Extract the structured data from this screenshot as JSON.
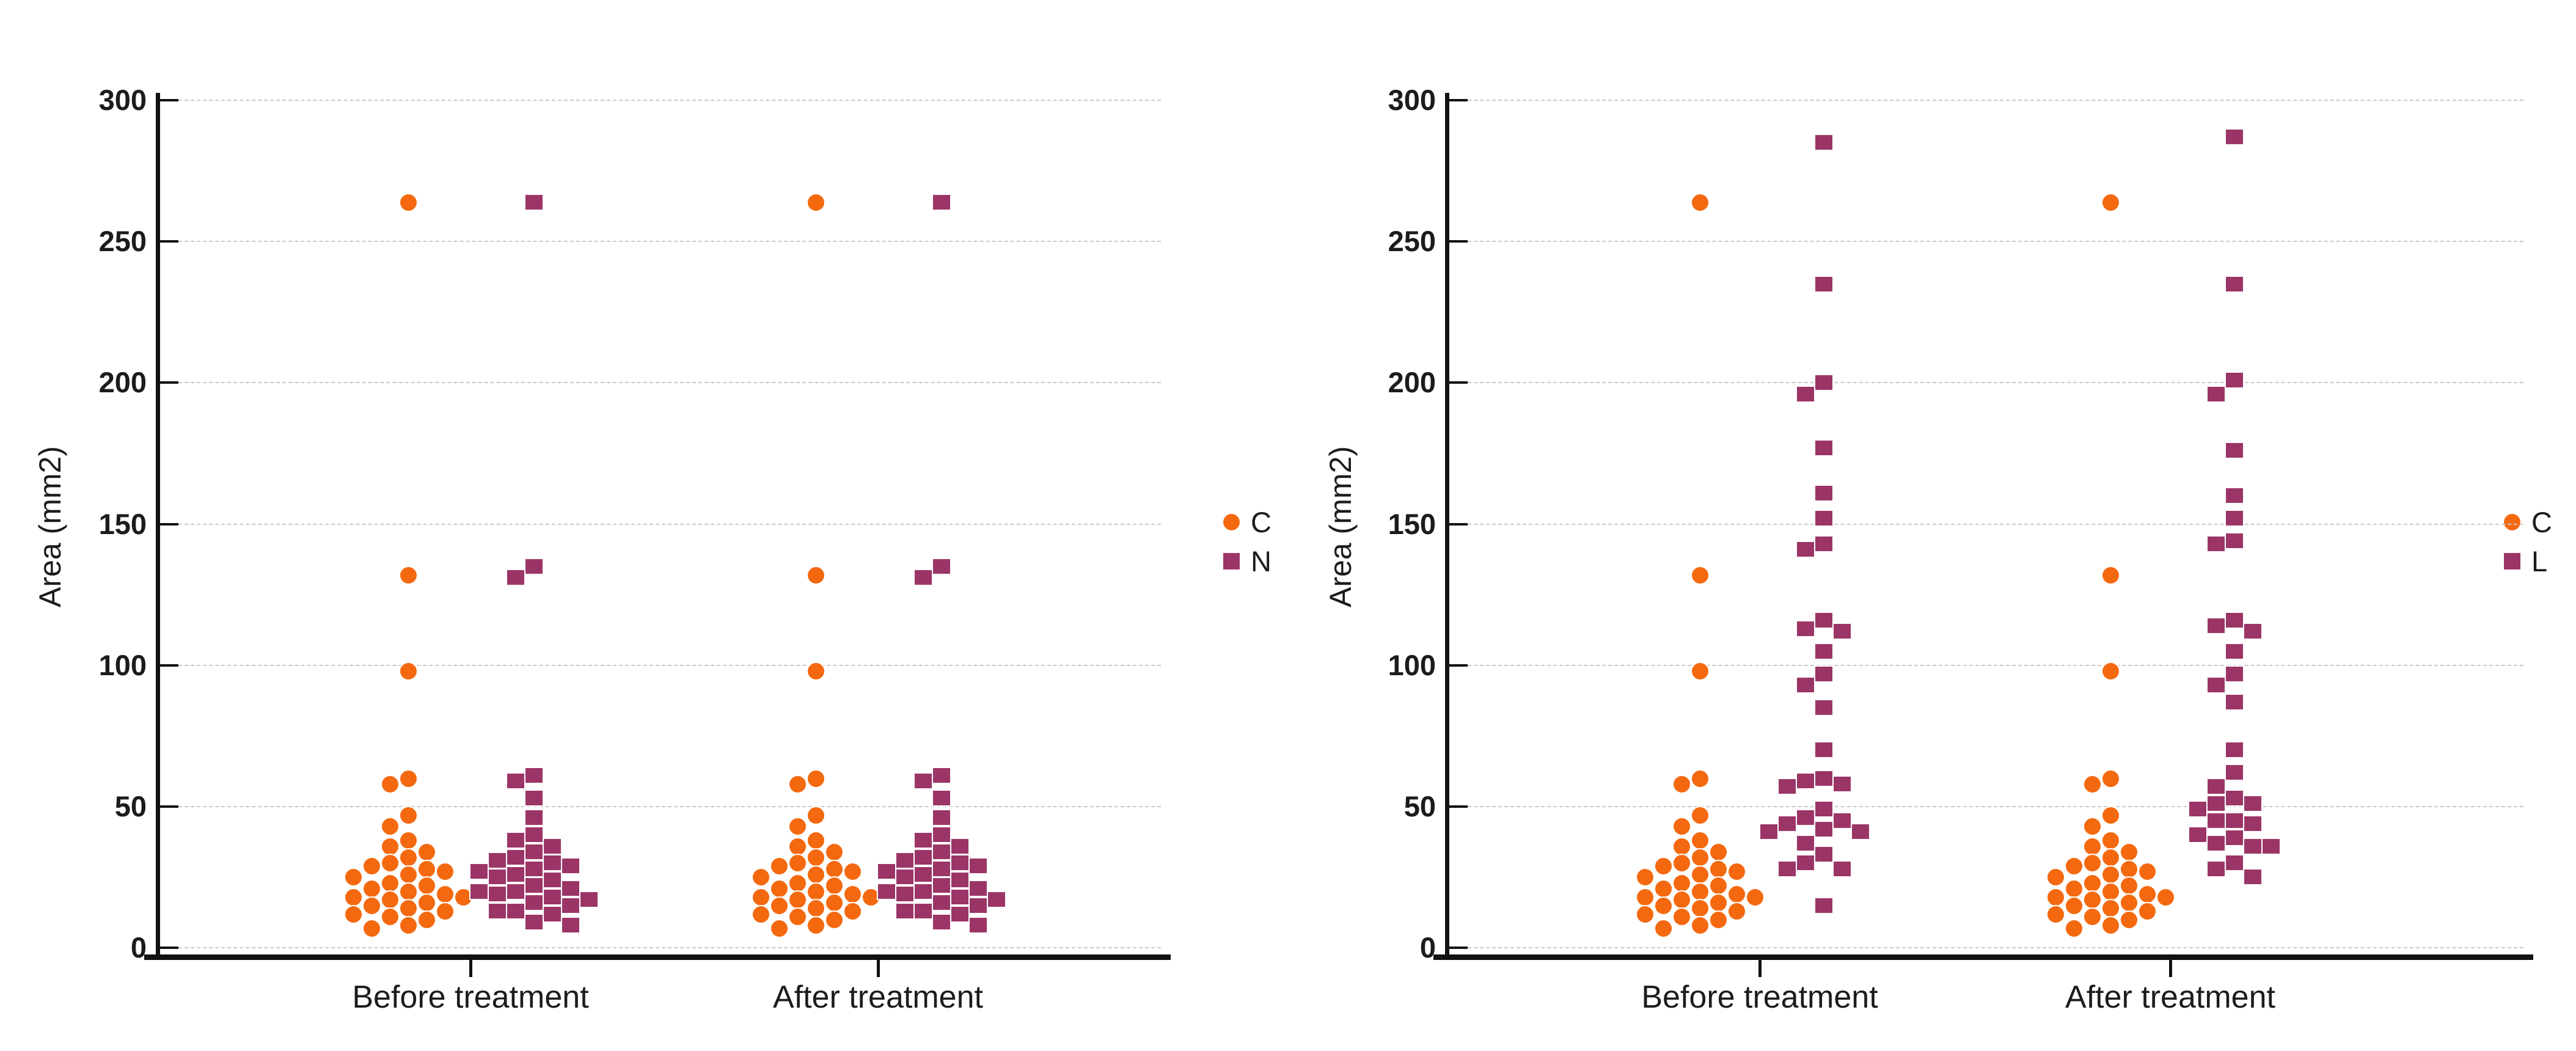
{
  "page": {
    "background": "#ffffff"
  },
  "colors": {
    "c_orange": "#F4690F",
    "nl_purple": "#9C3567",
    "axis_black": "#121212",
    "grid_gray": "#c9c9c9"
  },
  "chart_data": [
    {
      "type": "scatter",
      "subtype": "beeswarm-dot-plot",
      "title": "",
      "ylabel": "Area (mm2)",
      "xlabel": "",
      "categories": [
        "Before treatment",
        "After treatment"
      ],
      "ylim": [
        0,
        300
      ],
      "yticks": [
        0,
        50,
        100,
        150,
        200,
        250,
        300
      ],
      "grid": "horizontal-dashed",
      "legend_position": "right",
      "series": [
        {
          "name": "C",
          "marker": "circle",
          "color": "#F4690F",
          "values": [
            [
              264,
              132,
              98,
              60,
              58,
              47,
              43,
              38,
              36,
              34,
              32,
              30,
              29,
              28,
              27,
              26,
              25,
              23,
              22,
              21,
              20,
              19,
              18,
              18,
              17,
              16,
              15,
              14,
              13,
              12,
              11,
              10,
              8,
              7
            ],
            [
              264,
              132,
              98,
              60,
              58,
              47,
              43,
              38,
              36,
              34,
              32,
              30,
              29,
              28,
              27,
              26,
              25,
              23,
              22,
              21,
              20,
              19,
              18,
              18,
              17,
              16,
              15,
              14,
              13,
              12,
              11,
              10,
              8,
              7
            ]
          ]
        },
        {
          "name": "N",
          "marker": "square",
          "color": "#9C3567",
          "values": [
            [
              264,
              135,
              131,
              61,
              59,
              53,
              46,
              40,
              38,
              36,
              34,
              32,
              31,
              30,
              29,
              28,
              27,
              26,
              25,
              24,
              22,
              21,
              20,
              20,
              19,
              18,
              17,
              16,
              15,
              13,
              13,
              12,
              9,
              8
            ],
            [
              264,
              135,
              131,
              61,
              59,
              53,
              46,
              40,
              38,
              36,
              34,
              32,
              31,
              30,
              29,
              28,
              27,
              26,
              25,
              24,
              22,
              21,
              20,
              20,
              19,
              18,
              17,
              16,
              15,
              13,
              13,
              12,
              9,
              8
            ]
          ]
        }
      ]
    },
    {
      "type": "scatter",
      "subtype": "beeswarm-dot-plot",
      "title": "",
      "ylabel": "Area (mm2)",
      "xlabel": "",
      "categories": [
        "Before treatment",
        "After treatment"
      ],
      "ylim": [
        0,
        300
      ],
      "yticks": [
        0,
        50,
        100,
        150,
        200,
        250,
        300
      ],
      "grid": "horizontal-dashed",
      "legend_position": "right",
      "series": [
        {
          "name": "C",
          "marker": "circle",
          "color": "#F4690F",
          "values": [
            [
              264,
              132,
              98,
              60,
              58,
              47,
              43,
              38,
              36,
              34,
              32,
              30,
              29,
              28,
              27,
              26,
              25,
              23,
              22,
              21,
              20,
              19,
              18,
              18,
              17,
              16,
              15,
              14,
              13,
              12,
              11,
              10,
              8,
              7
            ],
            [
              264,
              132,
              98,
              60,
              58,
              47,
              43,
              38,
              36,
              34,
              32,
              30,
              29,
              28,
              27,
              26,
              25,
              23,
              22,
              21,
              20,
              19,
              18,
              18,
              17,
              16,
              15,
              14,
              13,
              12,
              11,
              10,
              8,
              7
            ]
          ]
        },
        {
          "name": "L",
          "marker": "square",
          "color": "#9C3567",
          "values": [
            [
              285,
              235,
              200,
              196,
              177,
              161,
              152,
              143,
              141,
              116,
              113,
              112,
              105,
              97,
              93,
              85,
              70,
              60,
              59,
              58,
              57,
              49,
              46,
              45,
              44,
              42,
              41,
              41,
              37,
              33,
              30,
              28,
              28,
              15
            ],
            [
              287,
              235,
              201,
              196,
              176,
              160,
              152,
              144,
              143,
              116,
              114,
              112,
              105,
              97,
              93,
              87,
              70,
              62,
              57,
              53,
              51,
              51,
              49,
              45,
              45,
              44,
              40,
              39,
              37,
              36,
              36,
              30,
              28,
              25
            ]
          ]
        }
      ]
    }
  ]
}
